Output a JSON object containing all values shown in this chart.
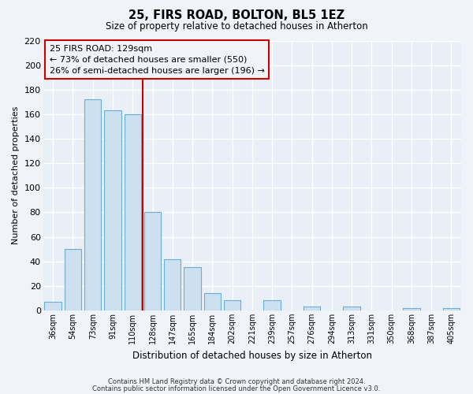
{
  "title": "25, FIRS ROAD, BOLTON, BL5 1EZ",
  "subtitle": "Size of property relative to detached houses in Atherton",
  "xlabel": "Distribution of detached houses by size in Atherton",
  "ylabel": "Number of detached properties",
  "bin_labels": [
    "36sqm",
    "54sqm",
    "73sqm",
    "91sqm",
    "110sqm",
    "128sqm",
    "147sqm",
    "165sqm",
    "184sqm",
    "202sqm",
    "221sqm",
    "239sqm",
    "257sqm",
    "276sqm",
    "294sqm",
    "313sqm",
    "331sqm",
    "350sqm",
    "368sqm",
    "387sqm",
    "405sqm"
  ],
  "bar_heights": [
    7,
    50,
    172,
    163,
    160,
    80,
    42,
    35,
    14,
    8,
    0,
    8,
    0,
    3,
    0,
    3,
    0,
    0,
    2,
    0,
    2
  ],
  "subject_line_bin": 4,
  "subject_label": "25 FIRS ROAD: 129sqm",
  "annotation_line1": "← 73% of detached houses are smaller (550)",
  "annotation_line2": "26% of semi-detached houses are larger (196) →",
  "bar_color": "#cce0f0",
  "bar_edge_color": "#6aadd5",
  "subject_line_color": "#cc0000",
  "annotation_box_edge": "#cc0000",
  "ylim": [
    0,
    220
  ],
  "yticks": [
    0,
    20,
    40,
    60,
    80,
    100,
    120,
    140,
    160,
    180,
    200,
    220
  ],
  "footer_line1": "Contains HM Land Registry data © Crown copyright and database right 2024.",
  "footer_line2": "Contains public sector information licensed under the Open Government Licence v3.0.",
  "bg_color": "#f0f4f8",
  "plot_bg_color": "#e8eff6",
  "grid_color": "#ffffff"
}
